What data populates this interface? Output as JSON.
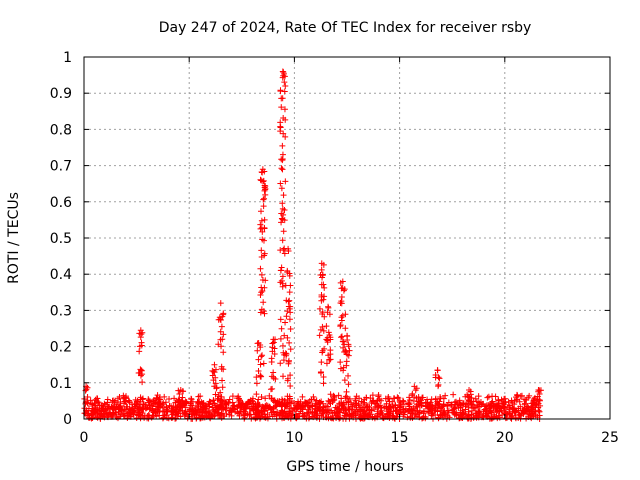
{
  "chart_data": {
    "type": "scatter",
    "title": "Day 247 of 2024, Rate Of TEC Index for receiver rsby",
    "xlabel": "GPS time / hours",
    "ylabel": "ROTI / TECUs",
    "xlim": [
      0,
      25
    ],
    "ylim": [
      0,
      1
    ],
    "xticks": [
      "0",
      "5",
      "10",
      "15",
      "20",
      "25"
    ],
    "yticks": [
      "0",
      "0.1",
      "0.2",
      "0.3",
      "0.4",
      "0.5",
      "0.6",
      "0.7",
      "0.8",
      "0.9",
      "1"
    ],
    "grid": true,
    "marker": "plus",
    "colors": {
      "points": "#ff0000",
      "grid": "#a0a0a0",
      "axis": "#000000"
    },
    "x_range_observed": [
      0,
      21.7
    ],
    "baseline_level": 0.04,
    "spikes": [
      {
        "x": 2.7,
        "y": 0.245
      },
      {
        "x": 6.5,
        "y": 0.32
      },
      {
        "x": 6.2,
        "y": 0.15
      },
      {
        "x": 8.3,
        "y": 0.21
      },
      {
        "x": 8.5,
        "y": 0.69
      },
      {
        "x": 9.0,
        "y": 0.22
      },
      {
        "x": 9.45,
        "y": 0.96
      },
      {
        "x": 9.7,
        "y": 0.47
      },
      {
        "x": 11.3,
        "y": 0.43
      },
      {
        "x": 11.6,
        "y": 0.31
      },
      {
        "x": 12.3,
        "y": 0.38
      },
      {
        "x": 12.5,
        "y": 0.23
      },
      {
        "x": 15.7,
        "y": 0.09
      },
      {
        "x": 16.8,
        "y": 0.135
      },
      {
        "x": 0.1,
        "y": 0.09
      },
      {
        "x": 4.6,
        "y": 0.08
      },
      {
        "x": 18.3,
        "y": 0.08
      },
      {
        "x": 21.6,
        "y": 0.08
      }
    ]
  }
}
